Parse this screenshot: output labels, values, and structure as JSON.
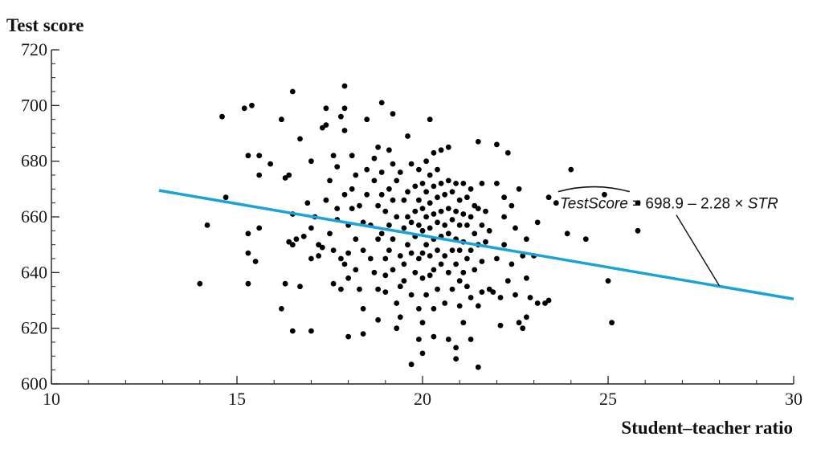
{
  "chart_data": {
    "type": "scatter",
    "title": "",
    "xlabel": "Student–teacher ratio",
    "ylabel": "Test score",
    "xlim": [
      10,
      30
    ],
    "ylim": [
      600,
      720
    ],
    "xticks": [
      10,
      15,
      20,
      25,
      30
    ],
    "yticks": [
      600,
      620,
      640,
      660,
      680,
      700,
      720
    ],
    "xticks_minor": [
      11,
      12,
      13,
      14,
      16,
      17,
      18,
      19,
      21,
      22,
      23,
      24,
      26,
      27,
      28,
      29
    ],
    "yticks_minor": [
      605,
      610,
      615,
      625,
      630,
      635,
      645,
      650,
      655,
      665,
      670,
      675,
      685,
      690,
      695,
      705,
      710,
      715
    ],
    "grid": false,
    "colors": {
      "points": "#000000",
      "regression_line": "#1aa3d8",
      "leader_line": "#111111"
    },
    "regression": {
      "intercept": 698.9,
      "slope": -2.28,
      "x_range": [
        12.9,
        30
      ]
    },
    "annotation": {
      "text_lhs": "TestScore",
      "text_rhs": " = 698.9 – 2.28 × ",
      "text_var": "STR",
      "at": [
        23.7,
        663
      ],
      "points_to": [
        28.0,
        635.2
      ]
    },
    "points": [
      [
        14.0,
        636
      ],
      [
        14.2,
        657
      ],
      [
        14.6,
        696
      ],
      [
        14.7,
        667
      ],
      [
        15.2,
        699
      ],
      [
        15.3,
        647
      ],
      [
        15.3,
        654
      ],
      [
        15.3,
        636
      ],
      [
        15.3,
        682
      ],
      [
        15.4,
        700
      ],
      [
        15.5,
        644
      ],
      [
        15.6,
        682
      ],
      [
        15.6,
        675
      ],
      [
        15.6,
        656
      ],
      [
        15.9,
        679
      ],
      [
        16.2,
        627
      ],
      [
        16.2,
        695
      ],
      [
        16.3,
        674
      ],
      [
        16.3,
        636
      ],
      [
        16.4,
        651
      ],
      [
        16.4,
        675
      ],
      [
        16.5,
        705
      ],
      [
        16.5,
        661
      ],
      [
        16.5,
        619
      ],
      [
        16.5,
        650
      ],
      [
        16.7,
        688
      ],
      [
        16.6,
        652
      ],
      [
        16.7,
        635
      ],
      [
        16.8,
        653
      ],
      [
        16.9,
        665
      ],
      [
        17.0,
        680
      ],
      [
        17.0,
        619
      ],
      [
        17.0,
        645
      ],
      [
        17.0,
        656
      ],
      [
        17.1,
        660
      ],
      [
        17.2,
        650
      ],
      [
        17.2,
        646
      ],
      [
        17.3,
        692
      ],
      [
        17.3,
        649
      ],
      [
        17.4,
        699
      ],
      [
        17.4,
        693
      ],
      [
        17.4,
        666
      ],
      [
        17.5,
        673
      ],
      [
        17.5,
        654
      ],
      [
        17.6,
        636
      ],
      [
        17.6,
        648
      ],
      [
        17.6,
        682
      ],
      [
        17.7,
        663
      ],
      [
        17.7,
        659
      ],
      [
        17.7,
        678
      ],
      [
        17.8,
        645
      ],
      [
        17.8,
        634
      ],
      [
        17.8,
        696
      ],
      [
        17.9,
        707
      ],
      [
        17.9,
        699
      ],
      [
        17.9,
        691
      ],
      [
        17.9,
        668
      ],
      [
        17.9,
        643
      ],
      [
        18.0,
        617
      ],
      [
        18.0,
        657
      ],
      [
        18.0,
        647
      ],
      [
        18.0,
        638
      ],
      [
        18.1,
        682
      ],
      [
        18.1,
        663
      ],
      [
        18.1,
        670
      ],
      [
        18.2,
        652
      ],
      [
        18.2,
        641
      ],
      [
        18.2,
        675
      ],
      [
        18.3,
        664
      ],
      [
        18.3,
        634
      ],
      [
        18.4,
        658
      ],
      [
        18.4,
        648
      ],
      [
        18.4,
        627
      ],
      [
        18.4,
        618
      ],
      [
        18.5,
        695
      ],
      [
        18.5,
        677
      ],
      [
        18.5,
        668
      ],
      [
        18.6,
        657
      ],
      [
        18.6,
        645
      ],
      [
        18.7,
        681
      ],
      [
        18.7,
        673
      ],
      [
        18.7,
        640
      ],
      [
        18.8,
        685
      ],
      [
        18.8,
        664
      ],
      [
        18.8,
        652
      ],
      [
        18.8,
        634
      ],
      [
        18.8,
        623
      ],
      [
        18.9,
        701
      ],
      [
        18.9,
        676
      ],
      [
        18.9,
        668
      ],
      [
        18.9,
        654
      ],
      [
        19.0,
        645
      ],
      [
        19.0,
        639
      ],
      [
        19.0,
        662
      ],
      [
        19.0,
        633
      ],
      [
        19.1,
        684
      ],
      [
        19.1,
        670
      ],
      [
        19.1,
        657
      ],
      [
        19.1,
        648
      ],
      [
        19.2,
        697
      ],
      [
        19.2,
        679
      ],
      [
        19.2,
        666
      ],
      [
        19.2,
        652
      ],
      [
        19.2,
        641
      ],
      [
        19.3,
        629
      ],
      [
        19.3,
        620
      ],
      [
        19.3,
        673
      ],
      [
        19.3,
        660
      ],
      [
        19.4,
        646
      ],
      [
        19.4,
        635
      ],
      [
        19.4,
        624
      ],
      [
        19.4,
        676
      ],
      [
        19.5,
        666
      ],
      [
        19.5,
        656
      ],
      [
        19.5,
        643
      ],
      [
        19.5,
        637
      ],
      [
        19.6,
        689
      ],
      [
        19.6,
        669
      ],
      [
        19.6,
        660
      ],
      [
        19.6,
        650
      ],
      [
        19.7,
        679
      ],
      [
        19.7,
        658
      ],
      [
        19.7,
        647
      ],
      [
        19.7,
        632
      ],
      [
        19.7,
        607
      ],
      [
        19.8,
        671
      ],
      [
        19.8,
        662
      ],
      [
        19.8,
        653
      ],
      [
        19.8,
        640
      ],
      [
        19.9,
        677
      ],
      [
        19.9,
        666
      ],
      [
        19.9,
        657
      ],
      [
        19.9,
        645
      ],
      [
        19.9,
        627
      ],
      [
        19.9,
        616
      ],
      [
        20.0,
        672
      ],
      [
        20.0,
        663
      ],
      [
        20.0,
        655
      ],
      [
        20.0,
        647
      ],
      [
        20.0,
        638
      ],
      [
        20.0,
        622
      ],
      [
        20.0,
        611
      ],
      [
        20.1,
        680
      ],
      [
        20.1,
        669
      ],
      [
        20.1,
        660
      ],
      [
        20.1,
        650
      ],
      [
        20.1,
        632
      ],
      [
        20.2,
        695
      ],
      [
        20.2,
        675
      ],
      [
        20.2,
        665
      ],
      [
        20.2,
        656
      ],
      [
        20.2,
        646
      ],
      [
        20.2,
        639
      ],
      [
        20.3,
        683
      ],
      [
        20.3,
        671
      ],
      [
        20.3,
        661
      ],
      [
        20.3,
        652
      ],
      [
        20.3,
        641
      ],
      [
        20.3,
        627
      ],
      [
        20.3,
        617
      ],
      [
        20.4,
        677
      ],
      [
        20.4,
        667
      ],
      [
        20.4,
        658
      ],
      [
        20.4,
        648
      ],
      [
        20.4,
        634
      ],
      [
        20.5,
        684
      ],
      [
        20.5,
        672
      ],
      [
        20.5,
        662
      ],
      [
        20.5,
        653
      ],
      [
        20.5,
        643
      ],
      [
        20.6,
        668
      ],
      [
        20.6,
        657
      ],
      [
        20.6,
        646
      ],
      [
        20.6,
        629
      ],
      [
        20.7,
        685
      ],
      [
        20.7,
        673
      ],
      [
        20.7,
        663
      ],
      [
        20.7,
        654
      ],
      [
        20.7,
        640
      ],
      [
        20.7,
        616
      ],
      [
        20.8,
        669
      ],
      [
        20.8,
        659
      ],
      [
        20.8,
        648
      ],
      [
        20.8,
        634
      ],
      [
        20.9,
        672
      ],
      [
        20.9,
        662
      ],
      [
        20.9,
        652
      ],
      [
        20.9,
        643
      ],
      [
        20.9,
        613
      ],
      [
        20.9,
        609
      ],
      [
        21.0,
        666
      ],
      [
        21.0,
        657
      ],
      [
        21.0,
        648
      ],
      [
        21.0,
        637
      ],
      [
        21.0,
        628
      ],
      [
        21.1,
        672
      ],
      [
        21.1,
        661
      ],
      [
        21.1,
        651
      ],
      [
        21.1,
        640
      ],
      [
        21.1,
        622
      ],
      [
        21.2,
        667
      ],
      [
        21.2,
        657
      ],
      [
        21.2,
        645
      ],
      [
        21.2,
        635
      ],
      [
        21.3,
        670
      ],
      [
        21.3,
        660
      ],
      [
        21.3,
        648
      ],
      [
        21.3,
        631
      ],
      [
        21.3,
        616
      ],
      [
        21.4,
        664
      ],
      [
        21.4,
        654
      ],
      [
        21.4,
        641
      ],
      [
        21.5,
        687
      ],
      [
        21.5,
        663
      ],
      [
        21.5,
        650
      ],
      [
        21.5,
        628
      ],
      [
        21.5,
        606
      ],
      [
        21.6,
        672
      ],
      [
        21.6,
        657
      ],
      [
        21.6,
        644
      ],
      [
        21.6,
        633
      ],
      [
        21.7,
        662
      ],
      [
        21.7,
        651
      ],
      [
        21.8,
        634
      ],
      [
        21.8,
        655
      ],
      [
        21.9,
        633
      ],
      [
        22.0,
        686
      ],
      [
        22.0,
        672
      ],
      [
        22.0,
        645
      ],
      [
        22.1,
        631
      ],
      [
        22.1,
        621
      ],
      [
        22.2,
        667
      ],
      [
        22.2,
        660
      ],
      [
        22.2,
        650
      ],
      [
        22.3,
        683
      ],
      [
        22.3,
        637
      ],
      [
        22.4,
        664
      ],
      [
        22.4,
        643
      ],
      [
        22.5,
        632
      ],
      [
        22.5,
        656
      ],
      [
        22.6,
        670
      ],
      [
        22.6,
        622
      ],
      [
        22.7,
        646
      ],
      [
        22.7,
        620
      ],
      [
        22.8,
        652
      ],
      [
        22.8,
        638
      ],
      [
        22.8,
        624
      ],
      [
        22.9,
        631
      ],
      [
        23.0,
        646
      ],
      [
        23.1,
        658
      ],
      [
        23.1,
        629
      ],
      [
        23.3,
        629
      ],
      [
        23.4,
        667
      ],
      [
        23.4,
        630
      ],
      [
        23.6,
        665
      ],
      [
        23.9,
        654
      ],
      [
        24.0,
        677
      ],
      [
        24.4,
        652
      ],
      [
        24.9,
        668
      ],
      [
        25.0,
        637
      ],
      [
        25.1,
        622
      ],
      [
        25.8,
        665
      ],
      [
        25.8,
        655
      ]
    ]
  }
}
